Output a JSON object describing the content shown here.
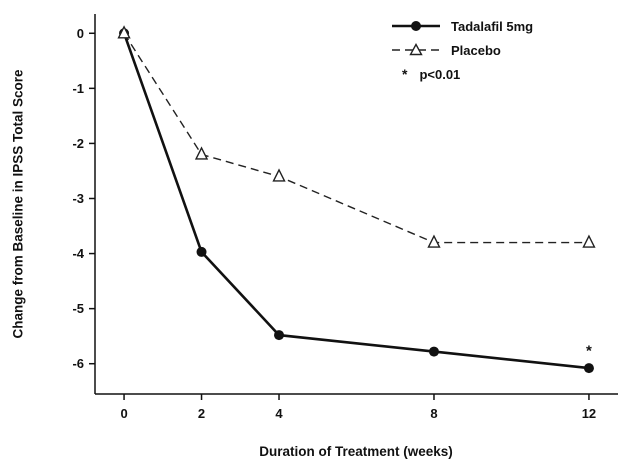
{
  "chart_data": {
    "type": "line",
    "title": "",
    "xlabel": "Duration of Treatment (weeks)",
    "ylabel": "Change from Baseline in IPSS Total Score",
    "x_ticks": [
      0,
      2,
      4,
      8,
      12
    ],
    "y_ticks": [
      0,
      -1,
      -2,
      -3,
      -4,
      -5,
      -6
    ],
    "xlim": [
      -0.75,
      12.75
    ],
    "ylim": [
      -6.55,
      0.35
    ],
    "grid": false,
    "series": [
      {
        "name": "Tadalafil 5mg",
        "line_style": "solid",
        "marker": "filled-circle",
        "color": "#111111",
        "x": [
          0,
          2,
          4,
          8,
          12
        ],
        "y": [
          0,
          -3.97,
          -5.48,
          -5.78,
          -6.08
        ]
      },
      {
        "name": "Placebo",
        "line_style": "dashed",
        "marker": "open-triangle",
        "color": "#222222",
        "x": [
          0,
          2,
          4,
          8,
          12
        ],
        "y": [
          0,
          -2.2,
          -2.6,
          -3.8,
          -3.8
        ]
      }
    ],
    "annotations": [
      {
        "text": "*",
        "x": 12,
        "y": -5.85
      }
    ],
    "significance": {
      "symbol": "*",
      "text": "p<0.01"
    },
    "legend": {
      "position": "top-right",
      "items": [
        {
          "label": "Tadalafil 5mg",
          "marker": "filled-circle",
          "line_style": "solid"
        },
        {
          "label": "Placebo",
          "marker": "open-triangle",
          "line_style": "dashed"
        }
      ]
    }
  }
}
